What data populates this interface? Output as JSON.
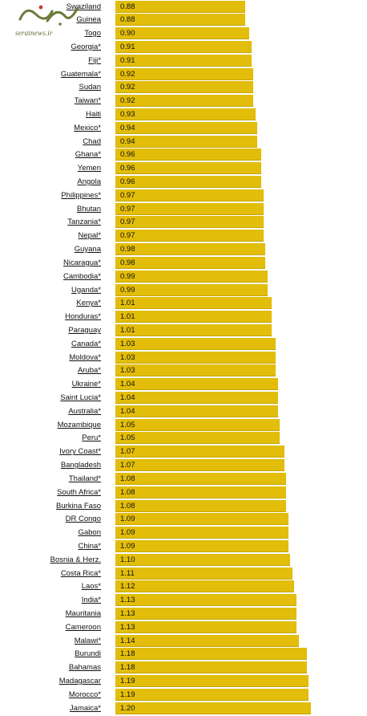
{
  "watermark": {
    "site": "seratnews.ir",
    "colors": {
      "primary": "#6a7a3a",
      "accent": "#c83a2a"
    }
  },
  "colors": {
    "bar": "#e2bd0a",
    "bar_edge": "#c9a400",
    "text": "#111111"
  },
  "chart_data": {
    "type": "bar",
    "orientation": "horizontal",
    "title": "",
    "xlabel": "",
    "ylabel": "",
    "grid": false,
    "legend": "none",
    "xlim": [
      0,
      1.65
    ],
    "categories": [
      "Swaziland",
      "Guinea",
      "Togo",
      "Georgia*",
      "Fiji*",
      "Guatemala*",
      "Sudan",
      "Taiwan*",
      "Haiti",
      "Mexico*",
      "Chad",
      "Ghana*",
      "Yemen",
      "Angola",
      "Philippines*",
      "Bhutan",
      "Tanzania*",
      "Nepal*",
      "Guyana",
      "Nicaragua*",
      "Cambodia*",
      "Uganda*",
      "Kenya*",
      "Honduras*",
      "Paraguay",
      "Canada*",
      "Moldova*",
      "Aruba*",
      "Ukraine*",
      "Saint Lucia*",
      "Australia*",
      "Mozambique",
      "Peru*",
      "Ivory Coast*",
      "Bangladesh",
      "Thailand*",
      "South Africa*",
      "Burkina Faso",
      "DR Congo",
      "Gabon",
      "China*",
      "Bosnia & Herz.",
      "Costa Rica*",
      "Laos*",
      "India*",
      "Mauritania",
      "Cameroon",
      "Malawi*",
      "Burundi",
      "Bahamas",
      "Madagascar",
      "Morocco*",
      "Jamaica*"
    ],
    "values": [
      0.88,
      0.88,
      0.9,
      0.91,
      0.91,
      0.92,
      0.92,
      0.92,
      0.93,
      0.94,
      0.94,
      0.96,
      0.96,
      0.96,
      0.97,
      0.97,
      0.97,
      0.97,
      0.98,
      0.98,
      0.99,
      0.99,
      1.01,
      1.01,
      1.01,
      1.03,
      1.03,
      1.03,
      1.04,
      1.04,
      1.04,
      1.05,
      1.05,
      1.07,
      1.07,
      1.08,
      1.08,
      1.08,
      1.09,
      1.09,
      1.09,
      1.1,
      1.11,
      1.12,
      1.13,
      1.13,
      1.13,
      1.14,
      1.18,
      1.18,
      1.19,
      1.19,
      1.2
    ],
    "value_labels": [
      "0.88",
      "0.88",
      "0.90",
      "0.91",
      "0.91",
      "0.92",
      "0.92",
      "0.92",
      "0.93",
      "0.94",
      "0.94",
      "0.96",
      "0.96",
      "0.96",
      "0.97",
      "0.97",
      "0.97",
      "0.97",
      "0.98",
      "0.98",
      "0.99",
      "0.99",
      "1.01",
      "1.01",
      "1.01",
      "1.03",
      "1.03",
      "1.03",
      "1.04",
      "1.04",
      "1.04",
      "1.05",
      "1.05",
      "1.07",
      "1.07",
      "1.08",
      "1.08",
      "1.08",
      "1.09",
      "1.09",
      "1.09",
      "1.10",
      "1.11",
      "1.12",
      "1.13",
      "1.13",
      "1.13",
      "1.14",
      "1.18",
      "1.18",
      "1.19",
      "1.19",
      "1.20"
    ]
  }
}
